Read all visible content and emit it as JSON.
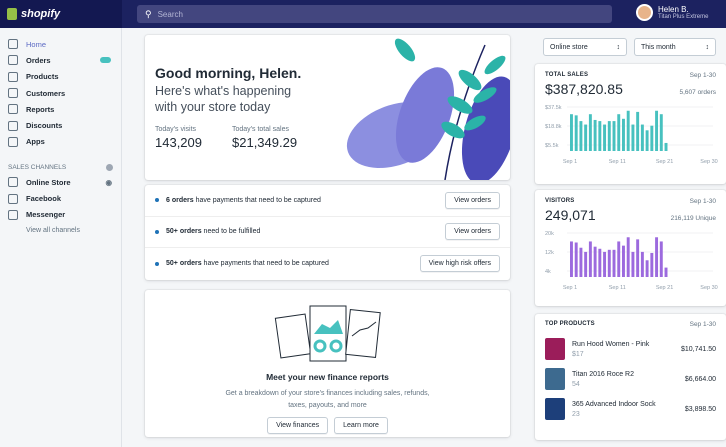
{
  "brand": "shopify",
  "search": {
    "placeholder": "Search"
  },
  "user": {
    "name": "Helen B.",
    "store": "Titan Plus Extreme"
  },
  "sidebar": {
    "items": [
      {
        "label": "Home",
        "icon": "home-icon"
      },
      {
        "label": "Orders",
        "icon": "orders-icon"
      },
      {
        "label": "Products",
        "icon": "tag-icon"
      },
      {
        "label": "Customers",
        "icon": "person-icon"
      },
      {
        "label": "Reports",
        "icon": "chart-icon"
      },
      {
        "label": "Discounts",
        "icon": "discount-icon"
      },
      {
        "label": "Apps",
        "icon": "apps-icon"
      }
    ],
    "channels_header": "SALES CHANNELS",
    "channels": [
      {
        "label": "Online Store",
        "icon": "store-icon"
      },
      {
        "label": "Facebook",
        "icon": "facebook-icon"
      },
      {
        "label": "Messenger",
        "icon": "messenger-icon"
      }
    ],
    "view_all": "View all channels"
  },
  "greeting": {
    "title": "Good morning, Helen.",
    "subtitle": "Here's what's happening with your store today",
    "visits_label": "Today's visits",
    "visits": "143,209",
    "sales_label": "Today's total sales",
    "sales": "$21,349.29"
  },
  "tasks": [
    {
      "bold": "6 orders",
      "text": " have payments that need to be captured",
      "button": "View orders"
    },
    {
      "bold": "50+ orders",
      "text": " need to be fulfilled",
      "button": "View orders"
    },
    {
      "bold": "50+ orders",
      "text": " have payments that need to be captured",
      "button": "View high risk offers"
    }
  ],
  "finance": {
    "title": "Meet your new finance reports",
    "text": "Get a breakdown of your store's finances including sales, refunds, taxes, payouts, and more",
    "btn1": "View finances",
    "btn2": "Learn more"
  },
  "filters": {
    "store": "Online store",
    "period": "This month"
  },
  "colors": {
    "sales": "#47c1bf",
    "visitors": "#9c6ade",
    "nav": "#1c2260"
  },
  "chart_data": [
    {
      "type": "bar",
      "title": "TOTAL SALES",
      "range": "Sep 1-30",
      "total": "$387,820.85",
      "secondary": "5,607 orders",
      "yticks": [
        "$37.5k",
        "$18.8k",
        "$5.5k"
      ],
      "xticks": [
        "Sep 1",
        "Sep 11",
        "Sep 21",
        "Sep 30"
      ],
      "unit": "k",
      "ylim": [
        0,
        40
      ],
      "categories": [
        "Sep 1",
        "Sep 2",
        "Sep 3",
        "Sep 4",
        "Sep 5",
        "Sep 6",
        "Sep 7",
        "Sep 8",
        "Sep 9",
        "Sep 10",
        "Sep 11",
        "Sep 12",
        "Sep 13",
        "Sep 14",
        "Sep 15",
        "Sep 16",
        "Sep 17",
        "Sep 18",
        "Sep 19",
        "Sep 20",
        "Sep 21"
      ],
      "values": [
        32,
        31,
        26,
        23,
        32,
        27,
        26,
        23,
        26,
        26,
        32,
        28,
        35,
        23,
        34,
        23,
        18,
        22,
        35,
        32,
        7
      ]
    },
    {
      "type": "bar",
      "title": "VISITORS",
      "range": "Sep 1-30",
      "total": "249,071",
      "secondary": "216,119 Unique",
      "yticks": [
        "20k",
        "12k",
        "4k"
      ],
      "xticks": [
        "Sep 1",
        "Sep 11",
        "Sep 21",
        "Sep 30"
      ],
      "ylim": [
        0,
        22
      ],
      "categories": [
        "Sep 1",
        "Sep 2",
        "Sep 3",
        "Sep 4",
        "Sep 5",
        "Sep 6",
        "Sep 7",
        "Sep 8",
        "Sep 9",
        "Sep 10",
        "Sep 11",
        "Sep 12",
        "Sep 13",
        "Sep 14",
        "Sep 15",
        "Sep 16",
        "Sep 17",
        "Sep 18",
        "Sep 19",
        "Sep 20",
        "Sep 21"
      ],
      "values": [
        17,
        16.5,
        14,
        12,
        17,
        14.5,
        13.5,
        12,
        13,
        13,
        17,
        15,
        19,
        12,
        18,
        12,
        8,
        11.5,
        19,
        17,
        4.5
      ]
    }
  ],
  "top_products": {
    "title": "TOP PRODUCTS",
    "range": "Sep 1-30",
    "items": [
      {
        "name": "Run Hood Women - Pink",
        "qty": "$17",
        "price": "$10,741.50",
        "color": "#9b1d5a"
      },
      {
        "name": "Titan 2016 Roce R2",
        "qty": "54",
        "price": "$6,664.00",
        "color": "#3d6a8f"
      },
      {
        "name": "365 Advanced Indoor Sock",
        "qty": "23",
        "price": "$3,898.50",
        "color": "#1d3f7a"
      }
    ]
  }
}
